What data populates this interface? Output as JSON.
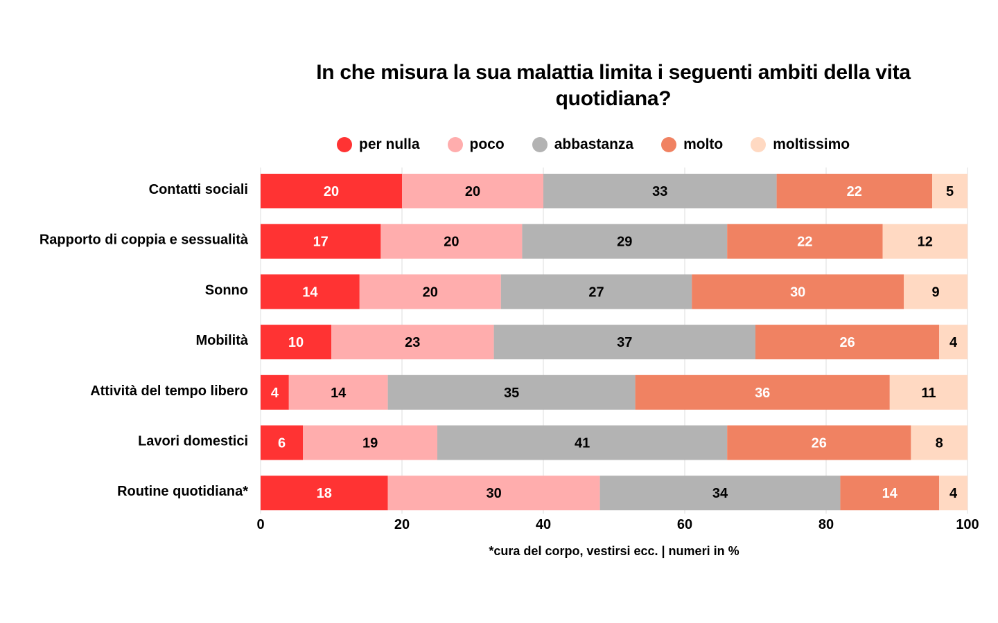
{
  "chart_data": {
    "type": "bar",
    "orientation": "horizontal",
    "stacked": true,
    "title": "In che misura la sua malattia limita i seguenti ambiti della vita quotidiana?",
    "title_lines": [
      "In che misura la sua malattia limita i seguenti ambiti della vita",
      "quotidiana?"
    ],
    "categories": [
      "Contatti sociali",
      "Rapporto di coppia e sessualità",
      "Sonno",
      "Mobilità",
      "Attività del tempo libero",
      "Lavori domestici",
      "Routine quotidiana*"
    ],
    "series": [
      {
        "name": "per nulla",
        "color": "#ff3333",
        "label_color": "#ffffff",
        "values": [
          20,
          17,
          14,
          10,
          4,
          6,
          18
        ]
      },
      {
        "name": "poco",
        "color": "#ffadad",
        "label_color": "#000000",
        "values": [
          20,
          20,
          20,
          23,
          14,
          19,
          30
        ]
      },
      {
        "name": "abbastanza",
        "color": "#b3b3b3",
        "label_color": "#000000",
        "values": [
          33,
          29,
          27,
          37,
          35,
          41,
          34
        ]
      },
      {
        "name": "molto",
        "color": "#f08262",
        "label_color": "#ffffff",
        "values": [
          22,
          22,
          30,
          26,
          36,
          26,
          14
        ]
      },
      {
        "name": "moltissimo",
        "color": "#ffd9c2",
        "label_color": "#000000",
        "values": [
          5,
          12,
          9,
          4,
          11,
          8,
          4
        ]
      }
    ],
    "xlim": [
      0,
      100
    ],
    "xticks": [
      0,
      20,
      40,
      60,
      80,
      100
    ],
    "xlabel": "",
    "ylabel": "",
    "grid": "vertical",
    "legend_position": "top",
    "footnote": "*cura del corpo, vestirsi ecc. | numeri in %"
  }
}
